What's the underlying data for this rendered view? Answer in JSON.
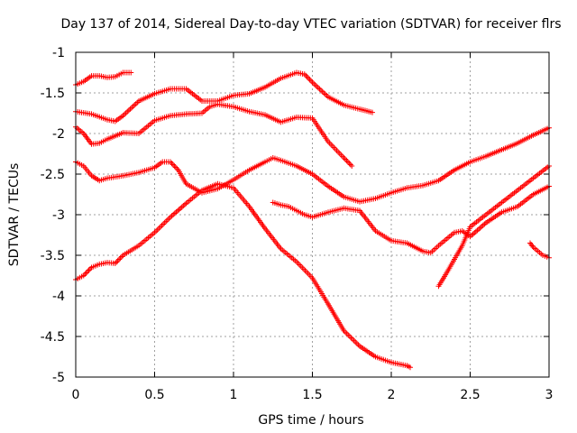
{
  "chart_data": {
    "type": "scatter",
    "title": "Day 137 of 2014, Sidereal Day-to-day VTEC variation (SDTVAR) for receiver flrs",
    "xlabel": "GPS time / hours",
    "ylabel": "SDTVAR / TECUs",
    "xlim": [
      0,
      3
    ],
    "ylim": [
      -5,
      -1
    ],
    "x_ticks": [
      "0",
      "0.5",
      "1",
      "1.5",
      "2",
      "2.5",
      "3"
    ],
    "y_ticks": [
      "-1",
      "-1.5",
      "-2",
      "-2.5",
      "-3",
      "-3.5",
      "-4",
      "-4.5",
      "-5"
    ],
    "x_tick_values": [
      0,
      0.5,
      1,
      1.5,
      2,
      2.5,
      3
    ],
    "y_tick_values": [
      -1,
      -1.5,
      -2,
      -2.5,
      -3,
      -3.5,
      -4,
      -4.5,
      -5
    ],
    "grid": true,
    "marker": "plus",
    "color": "#ff0000",
    "series": [
      {
        "x": [
          0.0,
          0.05,
          0.1,
          0.15,
          0.2,
          0.25,
          0.3,
          0.35
        ],
        "y": [
          -1.4,
          -1.36,
          -1.29,
          -1.29,
          -1.31,
          -1.3,
          -1.25,
          -1.25
        ]
      },
      {
        "x": [
          0.0,
          0.1,
          0.2,
          0.25,
          0.3,
          0.4,
          0.5,
          0.6,
          0.7,
          0.8,
          0.9,
          1.0,
          1.1,
          1.2,
          1.3,
          1.4,
          1.45,
          1.5,
          1.6,
          1.7,
          1.8,
          1.88
        ],
        "y": [
          -1.73,
          -1.76,
          -1.83,
          -1.85,
          -1.78,
          -1.6,
          -1.51,
          -1.45,
          -1.45,
          -1.6,
          -1.6,
          -1.53,
          -1.51,
          -1.43,
          -1.32,
          -1.25,
          -1.27,
          -1.37,
          -1.55,
          -1.65,
          -1.7,
          -1.74
        ]
      },
      {
        "x": [
          0.0,
          0.05,
          0.1,
          0.15,
          0.2,
          0.3,
          0.4,
          0.5,
          0.6,
          0.7,
          0.8,
          0.85,
          0.9,
          1.0,
          1.1,
          1.2,
          1.3,
          1.4,
          1.5,
          1.6,
          1.7,
          1.75
        ],
        "y": [
          -1.92,
          -2.0,
          -2.13,
          -2.12,
          -2.07,
          -1.99,
          -2.0,
          -1.84,
          -1.78,
          -1.76,
          -1.75,
          -1.67,
          -1.64,
          -1.67,
          -1.73,
          -1.77,
          -1.86,
          -1.8,
          -1.81,
          -2.1,
          -2.3,
          -2.4
        ]
      },
      {
        "x": [
          0.0,
          0.05,
          0.1,
          0.15,
          0.2,
          0.3,
          0.4,
          0.5,
          0.55,
          0.6,
          0.65,
          0.7,
          0.8,
          0.9,
          1.0,
          1.1,
          1.2,
          1.25,
          1.3,
          1.4,
          1.5,
          1.6,
          1.7,
          1.8,
          1.9,
          2.0,
          2.1,
          2.2,
          2.3,
          2.4,
          2.5,
          2.6,
          2.7,
          2.8,
          2.9,
          3.0
        ],
        "y": [
          -2.35,
          -2.4,
          -2.52,
          -2.58,
          -2.55,
          -2.52,
          -2.48,
          -2.42,
          -2.35,
          -2.35,
          -2.45,
          -2.62,
          -2.73,
          -2.68,
          -2.57,
          -2.45,
          -2.35,
          -2.3,
          -2.33,
          -2.4,
          -2.5,
          -2.65,
          -2.78,
          -2.84,
          -2.8,
          -2.73,
          -2.67,
          -2.64,
          -2.58,
          -2.45,
          -2.35,
          -2.28,
          -2.2,
          -2.12,
          -2.02,
          -1.93
        ]
      },
      {
        "x": [
          0.0,
          0.05,
          0.1,
          0.15,
          0.2,
          0.25,
          0.3,
          0.4,
          0.5,
          0.6,
          0.7,
          0.8,
          0.9,
          1.0,
          1.1,
          1.2,
          1.3,
          1.4,
          1.5,
          1.6,
          1.7,
          1.8,
          1.9,
          2.0,
          2.1,
          2.12
        ],
        "y": [
          -3.8,
          -3.75,
          -3.65,
          -3.61,
          -3.59,
          -3.6,
          -3.5,
          -3.38,
          -3.22,
          -3.03,
          -2.86,
          -2.7,
          -2.62,
          -2.67,
          -2.9,
          -3.17,
          -3.42,
          -3.58,
          -3.78,
          -4.1,
          -4.43,
          -4.62,
          -4.75,
          -4.82,
          -4.86,
          -4.88
        ]
      },
      {
        "x": [
          1.25,
          1.3,
          1.35,
          1.4,
          1.45,
          1.5,
          1.55,
          1.6,
          1.7,
          1.8,
          1.9,
          2.0,
          2.1,
          2.2,
          2.25,
          2.3,
          2.35,
          2.4,
          2.45,
          2.5,
          2.6,
          2.7,
          2.8,
          2.9,
          3.0
        ],
        "y": [
          -2.85,
          -2.88,
          -2.9,
          -2.95,
          -3.0,
          -3.03,
          -3.0,
          -2.97,
          -2.92,
          -2.95,
          -3.2,
          -3.32,
          -3.35,
          -3.45,
          -3.47,
          -3.38,
          -3.3,
          -3.22,
          -3.2,
          -3.27,
          -3.1,
          -2.97,
          -2.9,
          -2.75,
          -2.65
        ]
      },
      {
        "x": [
          2.3,
          2.35,
          2.4,
          2.45,
          2.5,
          2.6,
          2.7,
          2.8,
          2.9,
          3.0
        ],
        "y": [
          -3.88,
          -3.72,
          -3.55,
          -3.38,
          -3.15,
          -3.0,
          -2.85,
          -2.7,
          -2.55,
          -2.4
        ]
      },
      {
        "x": [
          2.88,
          2.9,
          2.93,
          2.96,
          3.0
        ],
        "y": [
          -3.35,
          -3.4,
          -3.45,
          -3.5,
          -3.53
        ]
      }
    ]
  }
}
